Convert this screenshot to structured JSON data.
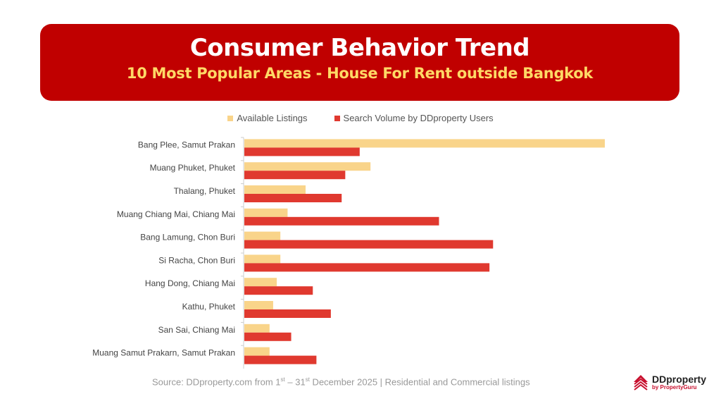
{
  "header": {
    "title": "Consumer Behavior Trend",
    "subtitle": "10 Most Popular Areas - House For Rent outside Bangkok"
  },
  "chart_data": {
    "type": "bar",
    "orientation": "horizontal",
    "title": "10 Most Popular Areas - House For Rent outside Bangkok",
    "note": "No numeric axis shown; values are relative indices (max = 100)",
    "categories": [
      "Bang Plee, Samut Prakan",
      "Muang Phuket, Phuket",
      "Thalang, Phuket",
      "Muang Chiang Mai, Chiang Mai",
      "Bang Lamung, Chon Buri",
      "Si Racha, Chon Buri",
      "Hang Dong, Chiang Mai",
      "Kathu, Phuket",
      "San Sai, Chiang Mai",
      "Muang Samut Prakarn, Samut Prakan"
    ],
    "series": [
      {
        "name": "Available Listings",
        "color": "#F9D48A",
        "values": [
          100,
          35,
          17,
          12,
          10,
          10,
          9,
          8,
          7,
          7
        ]
      },
      {
        "name": "Search Volume by DDproperty Users",
        "color": "#E0392F",
        "values": [
          32,
          28,
          27,
          54,
          69,
          68,
          19,
          24,
          13,
          20
        ]
      }
    ],
    "xlim": [
      0,
      100
    ],
    "grid": false,
    "legend": "top-center"
  },
  "footer": {
    "source_pre": "Source: DDproperty.com from 1",
    "sup1": "st",
    "mid": "  – 31",
    "sup2": "st",
    "source_post": " December 2025 | Residential and Commercial listings"
  },
  "logo": {
    "name": "DDproperty",
    "tagline": "by PropertyGuru"
  }
}
